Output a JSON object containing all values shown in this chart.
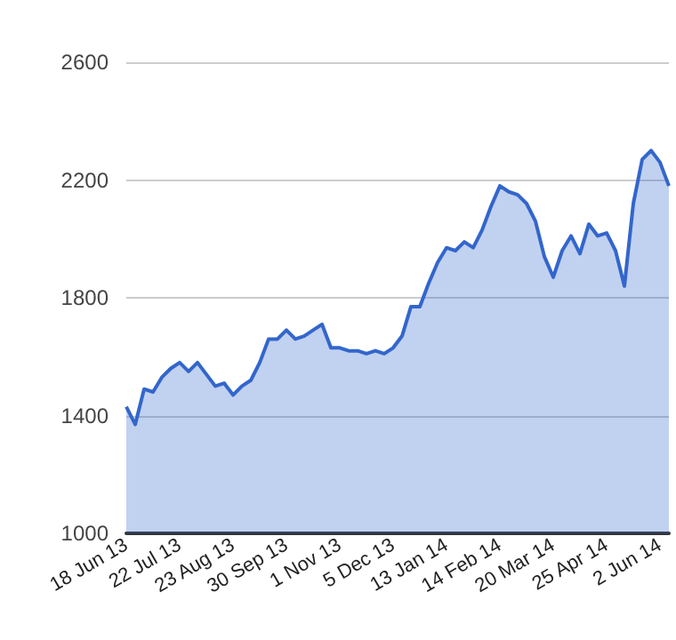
{
  "chart_data": {
    "type": "area",
    "categories": [
      "18 Jun 13",
      null,
      null,
      null,
      null,
      null,
      "22 Jul 13",
      null,
      null,
      null,
      null,
      null,
      "23 Aug 13",
      null,
      null,
      null,
      null,
      null,
      "30 Sep 13",
      null,
      null,
      null,
      null,
      null,
      "1 Nov 13",
      null,
      null,
      null,
      null,
      null,
      "5 Dec 13",
      null,
      null,
      null,
      null,
      null,
      "13 Jan 14",
      null,
      null,
      null,
      null,
      null,
      "14 Feb 14",
      null,
      null,
      null,
      null,
      null,
      "20 Mar 14",
      null,
      null,
      null,
      null,
      null,
      "25 Apr 14",
      null,
      null,
      null,
      null,
      null,
      "2 Jun 14",
      null
    ],
    "series": [
      {
        "color": "#3366cc",
        "values": [
          1430,
          1370,
          1490,
          1480,
          1530,
          1560,
          1580,
          1550,
          1580,
          1540,
          1500,
          1510,
          1470,
          1500,
          1520,
          1580,
          1660,
          1660,
          1690,
          1660,
          1670,
          1690,
          1710,
          1630,
          1630,
          1620,
          1620,
          1610,
          1620,
          1610,
          1630,
          1670,
          1770,
          1770,
          1850,
          1920,
          1970,
          1960,
          1990,
          1970,
          2030,
          2110,
          2180,
          2160,
          2150,
          2120,
          2060,
          1940,
          1870,
          1960,
          2010,
          1950,
          2050,
          2010,
          2020,
          1960,
          1840,
          2120,
          2270,
          2300,
          2260,
          2180
        ]
      }
    ],
    "ylim": [
      1000,
      2600
    ],
    "yticks": [
      1000,
      1400,
      1800,
      2200,
      2600
    ],
    "grid": "y",
    "marker": "none",
    "line_style": "solid"
  }
}
